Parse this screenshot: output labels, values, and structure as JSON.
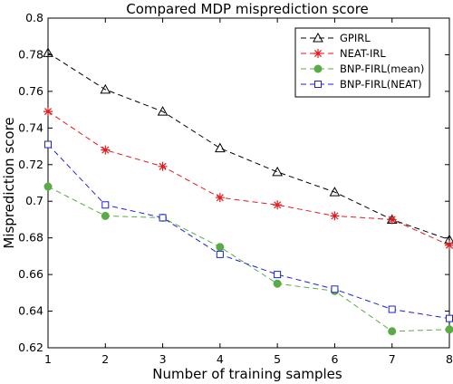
{
  "chart_data": {
    "type": "line",
    "title": "Compared MDP misprediction score",
    "xlabel": "Number of training samples",
    "ylabel": "Misprediction score",
    "x": [
      1,
      2,
      3,
      4,
      5,
      6,
      7,
      8
    ],
    "xlim": [
      1,
      8
    ],
    "ylim": [
      0.62,
      0.8
    ],
    "xticks": [
      "1",
      "2",
      "3",
      "4",
      "5",
      "6",
      "7",
      "8"
    ],
    "yticks": [
      0.62,
      0.64,
      0.66,
      0.68,
      0.7,
      0.72,
      0.74,
      0.76,
      0.78,
      0.8
    ],
    "ytick_labels": [
      "0.62",
      "0.64",
      "0.66",
      "0.68",
      "0.7",
      "0.72",
      "0.74",
      "0.76",
      "0.78",
      "0.8"
    ],
    "grid": false,
    "legend_position": "top-right",
    "series": [
      {
        "name": "GPIRL",
        "color": "#000000",
        "marker": "triangle",
        "values": [
          0.781,
          0.761,
          0.749,
          0.729,
          0.716,
          0.705,
          0.69,
          0.679
        ]
      },
      {
        "name": "NEAT-IRL",
        "color": "#e31a1c",
        "marker": "asterisk",
        "values": [
          0.749,
          0.728,
          0.719,
          0.702,
          0.698,
          0.692,
          0.69,
          0.676
        ]
      },
      {
        "name": "BNP-FIRL(mean)",
        "color": "#5aab46",
        "marker": "circle",
        "values": [
          0.708,
          0.692,
          0.691,
          0.675,
          0.655,
          0.651,
          0.629,
          0.63
        ]
      },
      {
        "name": "BNP-FIRL(NEAT)",
        "color": "#1f1fd6",
        "marker": "square",
        "values": [
          0.731,
          0.698,
          0.691,
          0.671,
          0.66,
          0.652,
          0.641,
          0.636
        ]
      }
    ]
  }
}
